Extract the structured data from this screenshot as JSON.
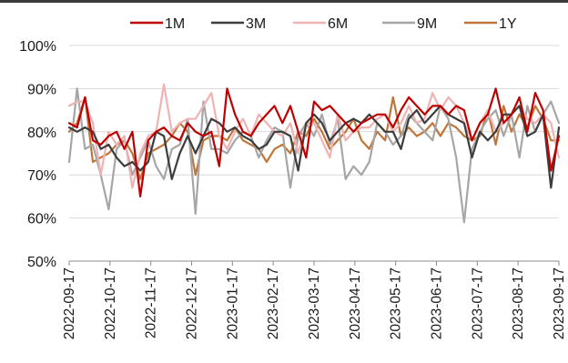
{
  "chart_data": {
    "type": "line",
    "title": "",
    "xlabel": "",
    "ylabel": "",
    "ylim": [
      50,
      100
    ],
    "yticks": [
      "50%",
      "60%",
      "70%",
      "80%",
      "90%",
      "100%"
    ],
    "xticks": [
      "2022-09-17",
      "2022-10-17",
      "2022-11-17",
      "2022-12-17",
      "2023-01-17",
      "2023-02-17",
      "2023-03-17",
      "2023-04-17",
      "2023-05-17",
      "2023-06-17",
      "2023-07-17",
      "2023-08-17",
      "2023-09-17"
    ],
    "grid": "horizontal",
    "legend_position": "top",
    "series": [
      {
        "name": "1M",
        "color": "#c00000",
        "values": [
          82,
          81,
          88,
          78,
          77,
          79,
          80,
          76,
          80,
          65,
          78,
          80,
          81,
          79,
          78,
          82,
          80,
          79,
          80,
          72,
          90,
          84,
          80,
          79,
          82,
          84,
          86,
          82,
          86,
          80,
          74,
          87,
          85,
          86,
          84,
          82,
          80,
          82,
          83,
          84,
          84,
          81,
          85,
          88,
          86,
          84,
          86,
          86,
          84,
          86,
          85,
          78,
          82,
          84,
          90,
          82,
          84,
          88,
          80,
          89,
          85,
          71,
          79
        ]
      },
      {
        "name": "3M",
        "color": "#3d3d3d",
        "values": [
          81,
          80,
          81,
          80,
          76,
          77,
          74,
          72,
          73,
          71,
          73,
          80,
          79,
          69,
          75,
          79,
          75,
          79,
          83,
          82,
          80,
          81,
          79,
          78,
          76,
          77,
          80,
          80,
          79,
          71,
          82,
          84,
          82,
          78,
          80,
          82,
          83,
          82,
          84,
          82,
          80,
          80,
          76,
          83,
          85,
          82,
          84,
          86,
          84,
          83,
          82,
          74,
          80,
          78,
          80,
          84,
          84,
          86,
          79,
          80,
          84,
          67,
          81
        ]
      },
      {
        "name": "6M",
        "color": "#f0b3b3",
        "values": [
          86,
          87,
          87,
          82,
          70,
          80,
          77,
          79,
          67,
          75,
          79,
          80,
          91,
          80,
          82,
          83,
          83,
          86,
          89,
          79,
          76,
          80,
          83,
          79,
          84,
          82,
          80,
          79,
          82,
          75,
          82,
          82,
          78,
          74,
          84,
          78,
          80,
          81,
          81,
          83,
          84,
          80,
          82,
          86,
          82,
          83,
          89,
          85,
          88,
          86,
          82,
          78,
          82,
          85,
          80,
          82,
          84,
          86,
          83,
          82,
          84,
          82,
          74
        ]
      },
      {
        "name": "9M",
        "color": "#a6a6a6",
        "values": [
          73,
          90,
          76,
          77,
          70,
          62,
          76,
          78,
          70,
          74,
          78,
          72,
          69,
          76,
          77,
          83,
          61,
          87,
          76,
          76,
          75,
          78,
          80,
          79,
          74,
          78,
          81,
          80,
          67,
          79,
          82,
          79,
          84,
          77,
          83,
          69,
          72,
          70,
          73,
          82,
          80,
          77,
          79,
          84,
          82,
          80,
          78,
          86,
          83,
          74,
          59,
          76,
          80,
          83,
          85,
          79,
          84,
          74,
          86,
          80,
          84,
          87,
          82
        ]
      },
      {
        "name": "1Y",
        "color": "#c0763a",
        "values": [
          80,
          82,
          88,
          73,
          74,
          75,
          77,
          78,
          75,
          69,
          75,
          76,
          77,
          79,
          82,
          80,
          70,
          78,
          79,
          79,
          78,
          81,
          78,
          77,
          76,
          73,
          76,
          77,
          75,
          80,
          79,
          83,
          80,
          76,
          78,
          80,
          83,
          78,
          76,
          80,
          78,
          88,
          79,
          81,
          79,
          80,
          82,
          79,
          82,
          81,
          79,
          78,
          79,
          85,
          77,
          86,
          80,
          84,
          81,
          86,
          83,
          78,
          78
        ]
      }
    ]
  }
}
